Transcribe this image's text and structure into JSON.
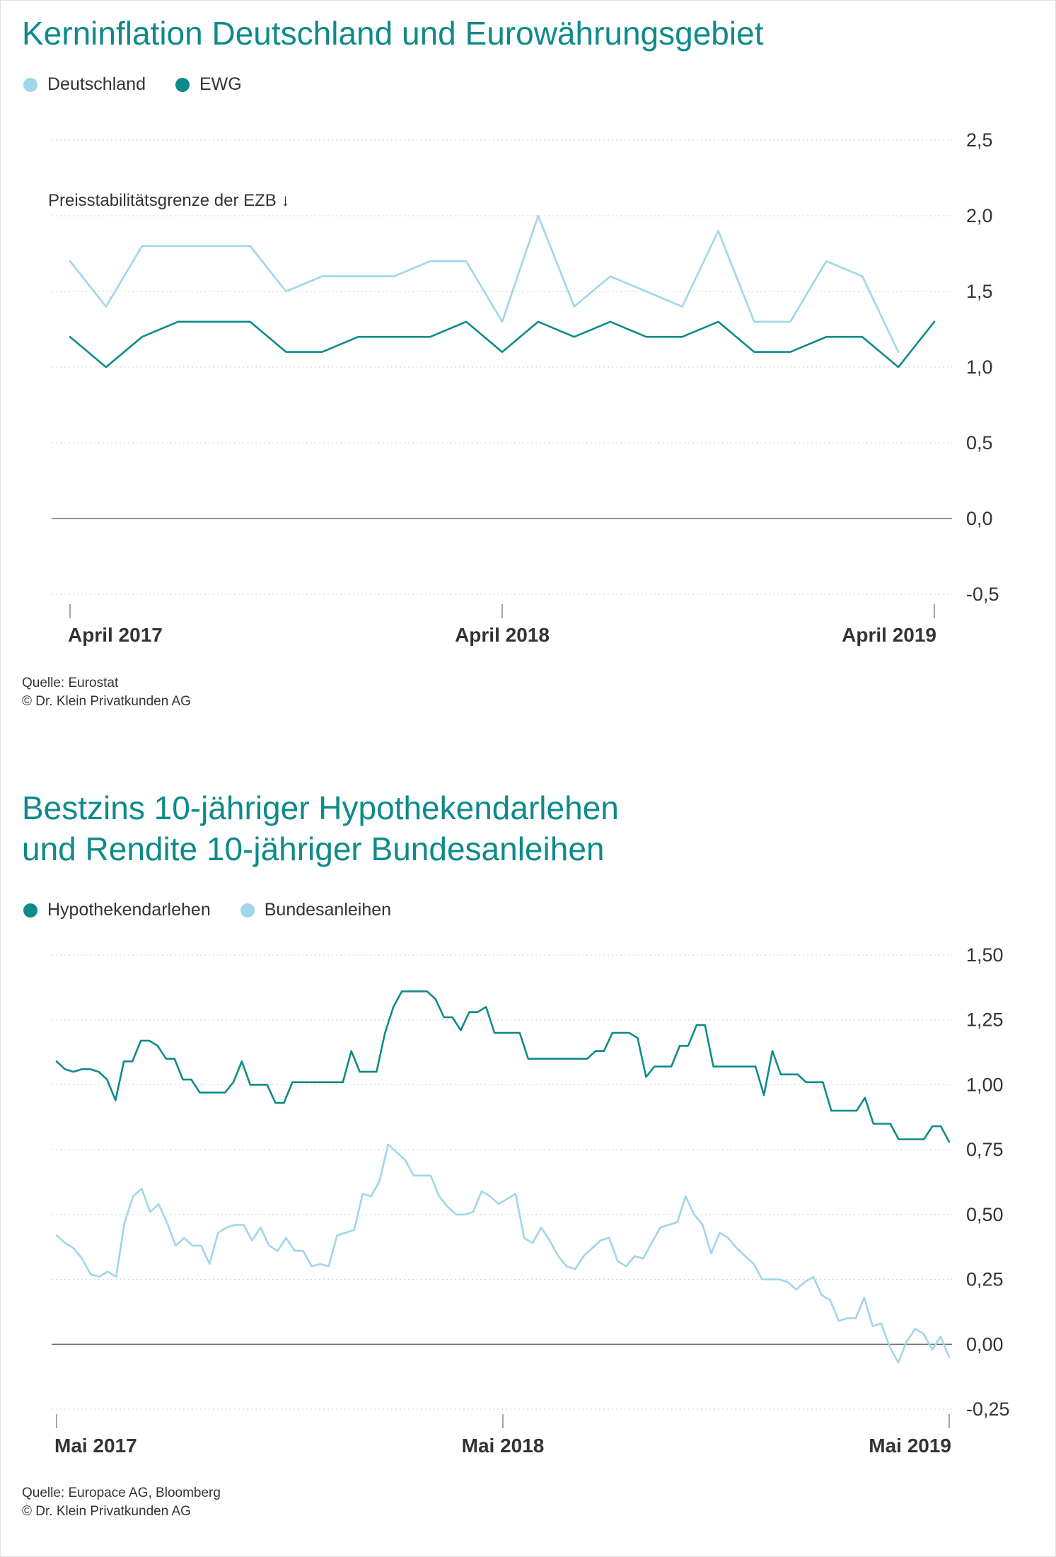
{
  "chart_data": [
    {
      "type": "line",
      "title": "Kerninflation Deutschland und Eurowährungsgebiet",
      "colors": {
        "Deutschland": "#9fd6ea",
        "EWG": "#0e8a8a"
      },
      "x": [
        "2017-04",
        "2017-05",
        "2017-06",
        "2017-07",
        "2017-08",
        "2017-09",
        "2017-10",
        "2017-11",
        "2017-12",
        "2018-01",
        "2018-02",
        "2018-03",
        "2018-04",
        "2018-05",
        "2018-06",
        "2018-07",
        "2018-08",
        "2018-09",
        "2018-10",
        "2018-11",
        "2018-12",
        "2019-01",
        "2019-02",
        "2019-03",
        "2019-04"
      ],
      "x_ticks": [
        {
          "x": "2017-04",
          "label": "April 2017"
        },
        {
          "x": "2018-04",
          "label": "April 2018"
        },
        {
          "x": "2019-04",
          "label": "April 2019"
        }
      ],
      "y_ticks": [
        {
          "value": 2.5,
          "label": "2,5"
        },
        {
          "value": 2.0,
          "label": "2,0"
        },
        {
          "value": 1.5,
          "label": "1,5"
        },
        {
          "value": 1.0,
          "label": "1,0"
        },
        {
          "value": 0.5,
          "label": "0,5"
        },
        {
          "value": 0.0,
          "label": "0,0"
        },
        {
          "value": -0.5,
          "label": "-0,5"
        }
      ],
      "ylim": [
        -0.5,
        2.5
      ],
      "grid": true,
      "legend_position": "top-left",
      "annotation": "Preisstabilitätsgrenze der EZB ↓",
      "series": [
        {
          "name": "Deutschland",
          "values": [
            1.7,
            1.4,
            1.8,
            1.8,
            1.8,
            1.8,
            1.5,
            1.6,
            1.6,
            1.6,
            1.7,
            1.7,
            1.3,
            2.0,
            1.4,
            1.6,
            1.5,
            1.4,
            1.9,
            1.3,
            1.3,
            1.7,
            1.6,
            1.1,
            null
          ]
        },
        {
          "name": "EWG",
          "values": [
            1.2,
            1.0,
            1.2,
            1.3,
            1.3,
            1.3,
            1.1,
            1.1,
            1.2,
            1.2,
            1.2,
            1.3,
            1.1,
            1.3,
            1.2,
            1.3,
            1.2,
            1.2,
            1.3,
            1.1,
            1.1,
            1.2,
            1.2,
            1.0,
            1.3
          ]
        }
      ],
      "source_lines": [
        "Quelle: Eurostat",
        "© Dr. Klein Privatkunden AG"
      ]
    },
    {
      "type": "line",
      "title_lines": [
        "Bestzins 10-jähriger Hypothekendarlehen",
        "und Rendite 10-jähriger Bundesanleihen"
      ],
      "colors": {
        "Hypothekendarlehen": "#0e8a8a",
        "Bundesanleihen": "#9fd6ea"
      },
      "x_start": "2017-05",
      "x_end": "2019-05",
      "x_ticks": [
        {
          "x": "2017-05",
          "label": "Mai 2017"
        },
        {
          "x": "2018-05",
          "label": "Mai 2018"
        },
        {
          "x": "2019-05",
          "label": "Mai 2019"
        }
      ],
      "y_ticks": [
        {
          "value": 1.5,
          "label": "1,50"
        },
        {
          "value": 1.25,
          "label": "1,25"
        },
        {
          "value": 1.0,
          "label": "1,00"
        },
        {
          "value": 0.75,
          "label": "0,75"
        },
        {
          "value": 0.5,
          "label": "0,50"
        },
        {
          "value": 0.25,
          "label": "0,25"
        },
        {
          "value": 0.0,
          "label": "0,00"
        },
        {
          "value": -0.25,
          "label": "-0,25"
        }
      ],
      "ylim": [
        -0.25,
        1.5
      ],
      "grid": true,
      "legend_position": "top-left",
      "series": [
        {
          "name": "Hypothekendarlehen",
          "values": [
            1.09,
            1.06,
            1.05,
            1.06,
            1.06,
            1.05,
            1.02,
            0.94,
            1.09,
            1.09,
            1.17,
            1.17,
            1.15,
            1.1,
            1.1,
            1.02,
            1.02,
            0.97,
            0.97,
            0.97,
            0.97,
            1.01,
            1.09,
            1.0,
            1.0,
            1.0,
            0.93,
            0.93,
            1.01,
            1.01,
            1.01,
            1.01,
            1.01,
            1.01,
            1.01,
            1.13,
            1.05,
            1.05,
            1.05,
            1.2,
            1.3,
            1.36,
            1.36,
            1.36,
            1.36,
            1.33,
            1.26,
            1.26,
            1.21,
            1.28,
            1.28,
            1.3,
            1.2,
            1.2,
            1.2,
            1.2,
            1.1,
            1.1,
            1.1,
            1.1,
            1.1,
            1.1,
            1.1,
            1.1,
            1.13,
            1.13,
            1.2,
            1.2,
            1.2,
            1.18,
            1.03,
            1.07,
            1.07,
            1.07,
            1.15,
            1.15,
            1.23,
            1.23,
            1.07,
            1.07,
            1.07,
            1.07,
            1.07,
            1.07,
            0.96,
            1.13,
            1.04,
            1.04,
            1.04,
            1.01,
            1.01,
            1.01,
            0.9,
            0.9,
            0.9,
            0.9,
            0.95,
            0.85,
            0.85,
            0.85,
            0.79,
            0.79,
            0.79,
            0.79,
            0.84,
            0.84,
            0.78
          ]
        },
        {
          "name": "Bundesanleihen",
          "values": [
            0.42,
            0.39,
            0.37,
            0.33,
            0.27,
            0.26,
            0.28,
            0.26,
            0.47,
            0.57,
            0.6,
            0.51,
            0.54,
            0.47,
            0.38,
            0.41,
            0.38,
            0.38,
            0.31,
            0.43,
            0.45,
            0.46,
            0.46,
            0.4,
            0.45,
            0.38,
            0.36,
            0.41,
            0.36,
            0.36,
            0.3,
            0.31,
            0.3,
            0.42,
            0.43,
            0.44,
            0.58,
            0.57,
            0.63,
            0.77,
            0.74,
            0.71,
            0.65,
            0.65,
            0.65,
            0.57,
            0.53,
            0.5,
            0.5,
            0.51,
            0.59,
            0.57,
            0.54,
            0.56,
            0.58,
            0.41,
            0.39,
            0.45,
            0.4,
            0.34,
            0.3,
            0.29,
            0.34,
            0.37,
            0.4,
            0.41,
            0.32,
            0.3,
            0.34,
            0.33,
            0.39,
            0.45,
            0.46,
            0.47,
            0.57,
            0.5,
            0.46,
            0.35,
            0.43,
            0.41,
            0.37,
            0.34,
            0.31,
            0.25,
            0.25,
            0.25,
            0.24,
            0.21,
            0.24,
            0.26,
            0.19,
            0.17,
            0.09,
            0.1,
            0.1,
            0.18,
            0.07,
            0.08,
            -0.01,
            -0.07,
            0.01,
            0.06,
            0.04,
            -0.02,
            0.03,
            -0.05
          ]
        }
      ],
      "source_lines": [
        "Quelle: Europace AG, Bloomberg",
        "© Dr. Klein Privatkunden AG"
      ]
    }
  ]
}
